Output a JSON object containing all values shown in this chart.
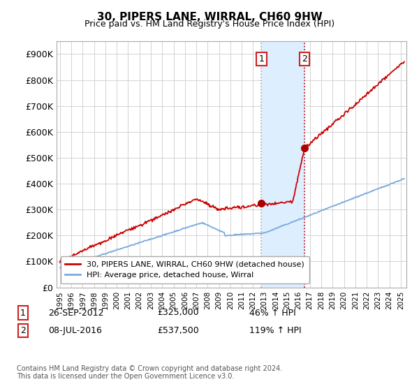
{
  "title": "30, PIPERS LANE, WIRRAL, CH60 9HW",
  "subtitle": "Price paid vs. HM Land Registry's House Price Index (HPI)",
  "sale1_date": "26-SEP-2012",
  "sale1_price": 325000,
  "sale1_hpi_pct": "46%",
  "sale2_date": "08-JUL-2016",
  "sale2_price": 537500,
  "sale2_hpi_pct": "119%",
  "sale1_x": 2012.74,
  "sale2_x": 2016.52,
  "legend_line1": "30, PIPERS LANE, WIRRAL, CH60 9HW (detached house)",
  "legend_line2": "HPI: Average price, detached house, Wirral",
  "footnote": "Contains HM Land Registry data © Crown copyright and database right 2024.\nThis data is licensed under the Open Government Licence v3.0.",
  "hpi_color": "#7aaadd",
  "price_color": "#cc0000",
  "shade_color": "#ddeeff",
  "marker_color": "#aa0000",
  "ylabel_ticks": [
    "£0",
    "£100K",
    "£200K",
    "£300K",
    "£400K",
    "£500K",
    "£600K",
    "£700K",
    "£800K",
    "£900K"
  ],
  "ytick_vals": [
    0,
    100000,
    200000,
    300000,
    400000,
    500000,
    600000,
    700000,
    800000,
    900000
  ],
  "ylim": [
    0,
    950000
  ],
  "xlim_start": 1994.7,
  "xlim_end": 2025.5
}
